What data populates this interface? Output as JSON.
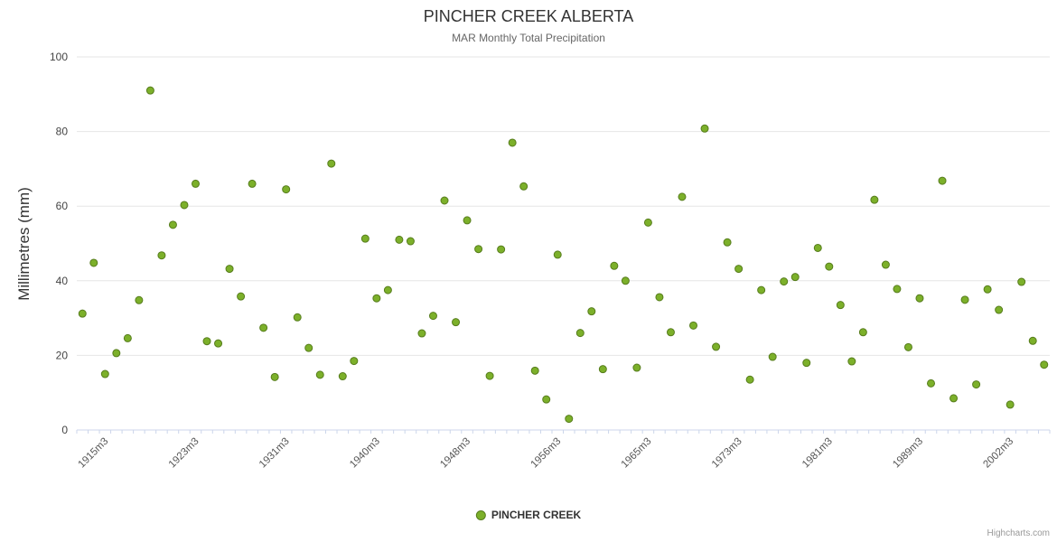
{
  "title": "PINCHER CREEK ALBERTA",
  "subtitle": "MAR Monthly Total Precipitation",
  "legend": {
    "series_label": "PINCHER CREEK"
  },
  "credits": "Highcharts.com",
  "colors": {
    "marker_fill": "#7cb02a",
    "marker_stroke": "#567c1c",
    "gridline": "#e6e6e6",
    "axis_line": "#ccd6eb",
    "label_text": "#555555",
    "title_text": "#333333"
  },
  "chart_data": {
    "type": "scatter",
    "title": "PINCHER CREEK ALBERTA",
    "subtitle": "MAR Monthly Total Precipitation",
    "series_name": "PINCHER CREEK",
    "xlabel": "",
    "ylabel": "Millimetres (mm)",
    "ylim": [
      0,
      100
    ],
    "y_ticks": [
      0,
      20,
      40,
      60,
      80,
      100
    ],
    "grid": true,
    "legend_position": "bottom-center",
    "marker_color": "#7cb02a",
    "marker_stroke": "#567c1c",
    "x_label_indices": [
      2,
      10,
      18,
      26,
      34,
      42,
      50,
      58,
      66,
      74,
      82
    ],
    "categories": [
      "1913m3",
      "1914m3",
      "1915m3",
      "1916m3",
      "1917m3",
      "1918m3",
      "1919m3",
      "1920m3",
      "1921m3",
      "1922m3",
      "1923m3",
      "1924m3",
      "1925m3",
      "1926m3",
      "1927m3",
      "1928m3",
      "1929m3",
      "1930m3",
      "1931m3",
      "1932m3",
      "1933m3",
      "1934m3",
      "1936m3",
      "1937m3",
      "1938m3",
      "1939m3",
      "1940m3",
      "1941m3",
      "1942m3",
      "1943m3",
      "1944m3",
      "1945m3",
      "1946m3",
      "1947m3",
      "1948m3",
      "1949m3",
      "1950m3",
      "1951m3",
      "1952m3",
      "1953m3",
      "1954m3",
      "1955m3",
      "1956m3",
      "1957m3",
      "1958m3",
      "1959m3",
      "1961m3",
      "1962m3",
      "1963m3",
      "1964m3",
      "1965m3",
      "1966m3",
      "1967m3",
      "1968m3",
      "1969m3",
      "1970m3",
      "1971m3",
      "1972m3",
      "1973m3",
      "1974m3",
      "1975m3",
      "1976m3",
      "1977m3",
      "1978m3",
      "1979m3",
      "1980m3",
      "1981m3",
      "1982m3",
      "1983m3",
      "1984m3",
      "1985m3",
      "1986m3",
      "1987m3",
      "1988m3",
      "1989m3",
      "1990m3",
      "1992m3",
      "1993m3",
      "1995m3",
      "1997m3",
      "1999m3",
      "2001m3",
      "2002m3",
      "2003m3",
      "2004m3",
      "2005m3"
    ],
    "values": [
      31.2,
      44.8,
      15.0,
      20.6,
      24.6,
      34.8,
      91.0,
      46.8,
      55.0,
      60.3,
      66.0,
      23.8,
      23.2,
      43.2,
      35.8,
      66.0,
      27.4,
      14.2,
      64.5,
      30.2,
      22.0,
      14.8,
      71.4,
      14.4,
      18.5,
      51.3,
      35.3,
      37.5,
      51.0,
      50.6,
      25.9,
      30.6,
      61.5,
      28.9,
      56.2,
      48.5,
      14.5,
      48.4,
      77.0,
      65.3,
      15.9,
      8.2,
      47.0,
      3.0,
      26.0,
      31.8,
      16.3,
      44.0,
      40.0,
      16.7,
      55.6,
      35.6,
      26.2,
      62.5,
      28.0,
      80.8,
      22.3,
      50.3,
      43.2,
      13.5,
      37.5,
      19.6,
      39.8,
      41.0,
      18.0,
      48.8,
      43.8,
      33.5,
      18.4,
      26.2,
      61.7,
      44.3,
      37.8,
      22.2,
      35.3,
      12.5,
      66.8,
      8.5,
      34.9,
      12.2,
      37.7,
      32.2,
      6.8,
      39.7,
      23.9,
      17.5
    ]
  }
}
